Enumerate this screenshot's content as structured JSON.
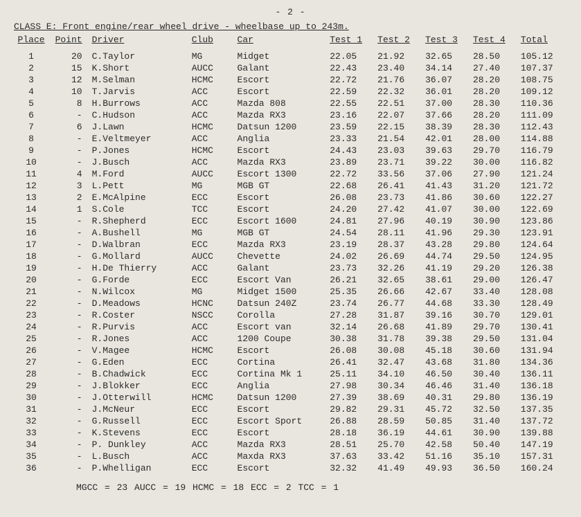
{
  "page_number": "- 2 -",
  "heading": "CLASS E: Front engine/rear wheel drive - wheelbase up to 243m.",
  "columns": [
    "Place",
    "Point",
    "Driver",
    "Club",
    "Car",
    "Test 1",
    "Test 2",
    "Test 3",
    "Test 4",
    "Total"
  ],
  "rows": [
    {
      "place": "1",
      "point": "20",
      "driver": "C.Taylor",
      "club": "MG",
      "car": "Midget",
      "t1": "22.05",
      "t2": "21.92",
      "t3": "32.65",
      "t4": "28.50",
      "total": "105.12"
    },
    {
      "place": "2",
      "point": "15",
      "driver": "K.Short",
      "club": "AUCC",
      "car": "Galant",
      "t1": "22.43",
      "t2": "23.40",
      "t3": "34.14",
      "t4": "27.40",
      "total": "107.37"
    },
    {
      "place": "3",
      "point": "12",
      "driver": "M.Selman",
      "club": "HCMC",
      "car": "Escort",
      "t1": "22.72",
      "t2": "21.76",
      "t3": "36.07",
      "t4": "28.20",
      "total": "108.75"
    },
    {
      "place": "4",
      "point": "10",
      "driver": "T.Jarvis",
      "club": "ACC",
      "car": "Escort",
      "t1": "22.59",
      "t2": "22.32",
      "t3": "36.01",
      "t4": "28.20",
      "total": "109.12"
    },
    {
      "place": "5",
      "point": "8",
      "driver": "H.Burrows",
      "club": "ACC",
      "car": "Mazda 808",
      "t1": "22.55",
      "t2": "22.51",
      "t3": "37.00",
      "t4": "28.30",
      "total": "110.36"
    },
    {
      "place": "6",
      "point": "-",
      "driver": "C.Hudson",
      "club": "ACC",
      "car": "Mazda RX3",
      "t1": "23.16",
      "t2": "22.07",
      "t3": "37.66",
      "t4": "28.20",
      "total": "111.09"
    },
    {
      "place": "7",
      "point": "6",
      "driver": "J.Lawn",
      "club": "HCMC",
      "car": "Datsun 1200",
      "t1": "23.59",
      "t2": "22.15",
      "t3": "38.39",
      "t4": "28.30",
      "total": "112.43"
    },
    {
      "place": "8",
      "point": "-",
      "driver": "E.Veltmeyer",
      "club": "ACC",
      "car": "Anglia",
      "t1": "23.33",
      "t2": "21.54",
      "t3": "42.01",
      "t4": "28.00",
      "total": "114.88"
    },
    {
      "place": "9",
      "point": "-",
      "driver": "P.Jones",
      "club": "HCMC",
      "car": "Escort",
      "t1": "24.43",
      "t2": "23.03",
      "t3": "39.63",
      "t4": "29.70",
      "total": "116.79"
    },
    {
      "place": "10",
      "point": "-",
      "driver": "J.Busch",
      "club": "ACC",
      "car": "Mazda RX3",
      "t1": "23.89",
      "t2": "23.71",
      "t3": "39.22",
      "t4": "30.00",
      "total": "116.82"
    },
    {
      "place": "11",
      "point": "4",
      "driver": "M.Ford",
      "club": "AUCC",
      "car": "Escort 1300",
      "t1": "22.72",
      "t2": "33.56",
      "t3": "37.06",
      "t4": "27.90",
      "total": "121.24"
    },
    {
      "place": "12",
      "point": "3",
      "driver": "L.Pett",
      "club": "MG",
      "car": "MGB GT",
      "t1": "22.68",
      "t2": "26.41",
      "t3": "41.43",
      "t4": "31.20",
      "total": "121.72"
    },
    {
      "place": "13",
      "point": "2",
      "driver": "E.McAlpine",
      "club": "ECC",
      "car": "Escort",
      "t1": "26.08",
      "t2": "23.73",
      "t3": "41.86",
      "t4": "30.60",
      "total": "122.27"
    },
    {
      "place": "14",
      "point": "1",
      "driver": "S.Cole",
      "club": "TCC",
      "car": "Escort",
      "t1": "24.20",
      "t2": "27.42",
      "t3": "41.07",
      "t4": "30.00",
      "total": "122.69"
    },
    {
      "place": "15",
      "point": "-",
      "driver": "R.Shepherd",
      "club": "ECC",
      "car": "Escort 1600",
      "t1": "24.81",
      "t2": "27.96",
      "t3": "40.19",
      "t4": "30.90",
      "total": "123.86"
    },
    {
      "place": "16",
      "point": "-",
      "driver": "A.Bushell",
      "club": "MG",
      "car": "MGB GT",
      "t1": "24.54",
      "t2": "28.11",
      "t3": "41.96",
      "t4": "29.30",
      "total": "123.91"
    },
    {
      "place": "17",
      "point": "-",
      "driver": "D.Walbran",
      "club": "ECC",
      "car": "Mazda RX3",
      "t1": "23.19",
      "t2": "28.37",
      "t3": "43.28",
      "t4": "29.80",
      "total": "124.64"
    },
    {
      "place": "18",
      "point": "-",
      "driver": "G.Mollard",
      "club": "AUCC",
      "car": "Chevette",
      "t1": "24.02",
      "t2": "26.69",
      "t3": "44.74",
      "t4": "29.50",
      "total": "124.95"
    },
    {
      "place": "19",
      "point": "-",
      "driver": "H.De Thierry",
      "club": "ACC",
      "car": "Galant",
      "t1": "23.73",
      "t2": "32.26",
      "t3": "41.19",
      "t4": "29.20",
      "total": "126.38"
    },
    {
      "place": "20",
      "point": "-",
      "driver": "G.Forde",
      "club": "ECC",
      "car": "Escort Van",
      "t1": "26.21",
      "t2": "32.65",
      "t3": "38.61",
      "t4": "29.00",
      "total": "126.47"
    },
    {
      "place": "21",
      "point": "-",
      "driver": "N.Wilcox",
      "club": "MG",
      "car": "Midget 1500",
      "t1": "25.35",
      "t2": "26.66",
      "t3": "42.67",
      "t4": "33.40",
      "total": "128.08"
    },
    {
      "place": "22",
      "point": "-",
      "driver": "D.Meadows",
      "club": "HCNC",
      "car": "Datsun 240Z",
      "t1": "23.74",
      "t2": "26.77",
      "t3": "44.68",
      "t4": "33.30",
      "total": "128.49"
    },
    {
      "place": "23",
      "point": "-",
      "driver": "R.Coster",
      "club": "NSCC",
      "car": "Corolla",
      "t1": "27.28",
      "t2": "31.87",
      "t3": "39.16",
      "t4": "30.70",
      "total": "129.01"
    },
    {
      "place": "24",
      "point": "-",
      "driver": "R.Purvis",
      "club": "ACC",
      "car": "Escort van",
      "t1": "32.14",
      "t2": "26.68",
      "t3": "41.89",
      "t4": "29.70",
      "total": "130.41"
    },
    {
      "place": "25",
      "point": "-",
      "driver": "R.Jones",
      "club": "ACC",
      "car": "1200 Coupe",
      "t1": "30.38",
      "t2": "31.78",
      "t3": "39.38",
      "t4": "29.50",
      "total": "131.04"
    },
    {
      "place": "26",
      "point": "-",
      "driver": "V.Magee",
      "club": "HCMC",
      "car": "Escort",
      "t1": "26.08",
      "t2": "30.08",
      "t3": "45.18",
      "t4": "30.60",
      "total": "131.94"
    },
    {
      "place": "27",
      "point": "-",
      "driver": "G.Eden",
      "club": "ECC",
      "car": "Cortina",
      "t1": "26.41",
      "t2": "32.47",
      "t3": "43.68",
      "t4": "31.80",
      "total": "134.36"
    },
    {
      "place": "28",
      "point": "-",
      "driver": "B.Chadwick",
      "club": "ECC",
      "car": "Cortina Mk 1",
      "t1": "25.11",
      "t2": "34.10",
      "t3": "46.50",
      "t4": "30.40",
      "total": "136.11"
    },
    {
      "place": "29",
      "point": "-",
      "driver": "J.Blokker",
      "club": "ECC",
      "car": "Anglia",
      "t1": "27.98",
      "t2": "30.34",
      "t3": "46.46",
      "t4": "31.40",
      "total": "136.18"
    },
    {
      "place": "30",
      "point": "-",
      "driver": "J.Otterwill",
      "club": "HCMC",
      "car": "Datsun 1200",
      "t1": "27.39",
      "t2": "38.69",
      "t3": "40.31",
      "t4": "29.80",
      "total": "136.19"
    },
    {
      "place": "31",
      "point": "-",
      "driver": "J.McNeur",
      "club": "ECC",
      "car": "Escort",
      "t1": "29.82",
      "t2": "29.31",
      "t3": "45.72",
      "t4": "32.50",
      "total": "137.35"
    },
    {
      "place": "32",
      "point": "-",
      "driver": "G.Russell",
      "club": "ECC",
      "car": "Escort Sport",
      "t1": "26.88",
      "t2": "28.59",
      "t3": "50.85",
      "t4": "31.40",
      "total": "137.72"
    },
    {
      "place": "33",
      "point": "-",
      "driver": "K.Stevens",
      "club": "ECC",
      "car": "Escort",
      "t1": "28.18",
      "t2": "36.19",
      "t3": "44.61",
      "t4": "30.90",
      "total": "139.88"
    },
    {
      "place": "34",
      "point": "-",
      "driver": "P. Dunkley",
      "club": "ACC",
      "car": "Mazda RX3",
      "t1": "28.51",
      "t2": "25.70",
      "t3": "42.58",
      "t4": "50.40",
      "total": "147.19"
    },
    {
      "place": "35",
      "point": "-",
      "driver": "L.Busch",
      "club": "ACC",
      "car": "Maxda RX3",
      "t1": "37.63",
      "t2": "33.42",
      "t3": "51.16",
      "t4": "35.10",
      "total": "157.31"
    },
    {
      "place": "36",
      "point": "-",
      "driver": "P.Whelligan",
      "club": "ECC",
      "car": "Escort",
      "t1": "32.32",
      "t2": "41.49",
      "t3": "49.93",
      "t4": "36.50",
      "total": "160.24"
    }
  ],
  "footer": "MGCC = 23   AUCC = 19   HCMC = 18   ECC = 2   TCC = 1"
}
